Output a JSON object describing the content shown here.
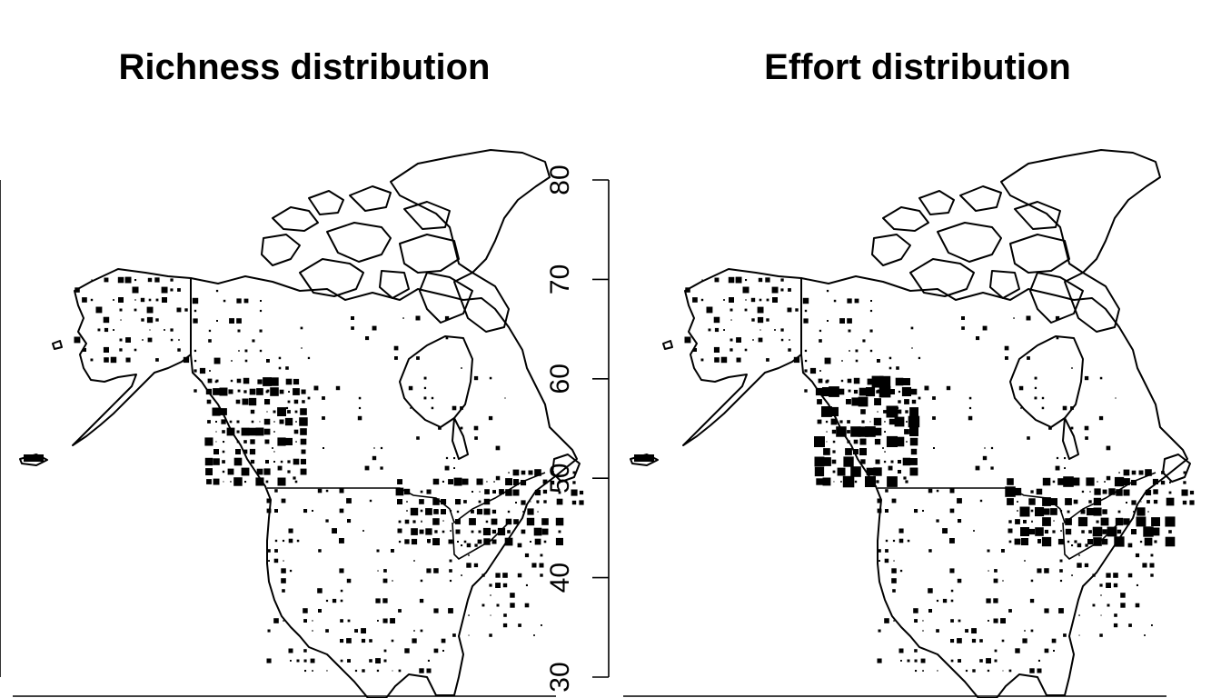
{
  "panels": [
    {
      "title": "Richness distribution"
    },
    {
      "title": "Effort distribution"
    }
  ],
  "latitude_axis": {
    "ticks": [
      "30",
      "40",
      "50",
      "60",
      "70",
      "80"
    ]
  },
  "chart_data": [
    {
      "type": "map",
      "title": "Richness distribution",
      "region": "North America (Alaska, Canada, contiguous USA)",
      "y_axis": {
        "quantity": "latitude",
        "ticks": [
          30,
          40,
          50,
          60,
          70,
          80
        ],
        "range": [
          30,
          80
        ]
      },
      "marker_encoding": "square markers on a lat/lon grid; marker size increases with value",
      "hotspots": [
        "Pacific Northwest coast",
        "Alaska coast",
        "Great Lakes / northeast US",
        "US Atlantic coast"
      ],
      "colors": {
        "markers": "#000000",
        "outline": "#000000",
        "background": "#ffffff"
      }
    },
    {
      "type": "map",
      "title": "Effort distribution",
      "region": "North America (Alaska, Canada, contiguous USA)",
      "y_axis": {
        "quantity": "latitude",
        "ticks": [
          30,
          40,
          50,
          60,
          70,
          80
        ],
        "range": [
          30,
          80
        ]
      },
      "marker_encoding": "square markers on a lat/lon grid; marker size increases with value",
      "hotspots": [
        "Pacific Northwest coast (very dense)",
        "Alaska coast",
        "Great Lakes / northeast US",
        "US Atlantic coast"
      ],
      "colors": {
        "markers": "#000000",
        "outline": "#000000",
        "background": "#ffffff"
      }
    }
  ]
}
